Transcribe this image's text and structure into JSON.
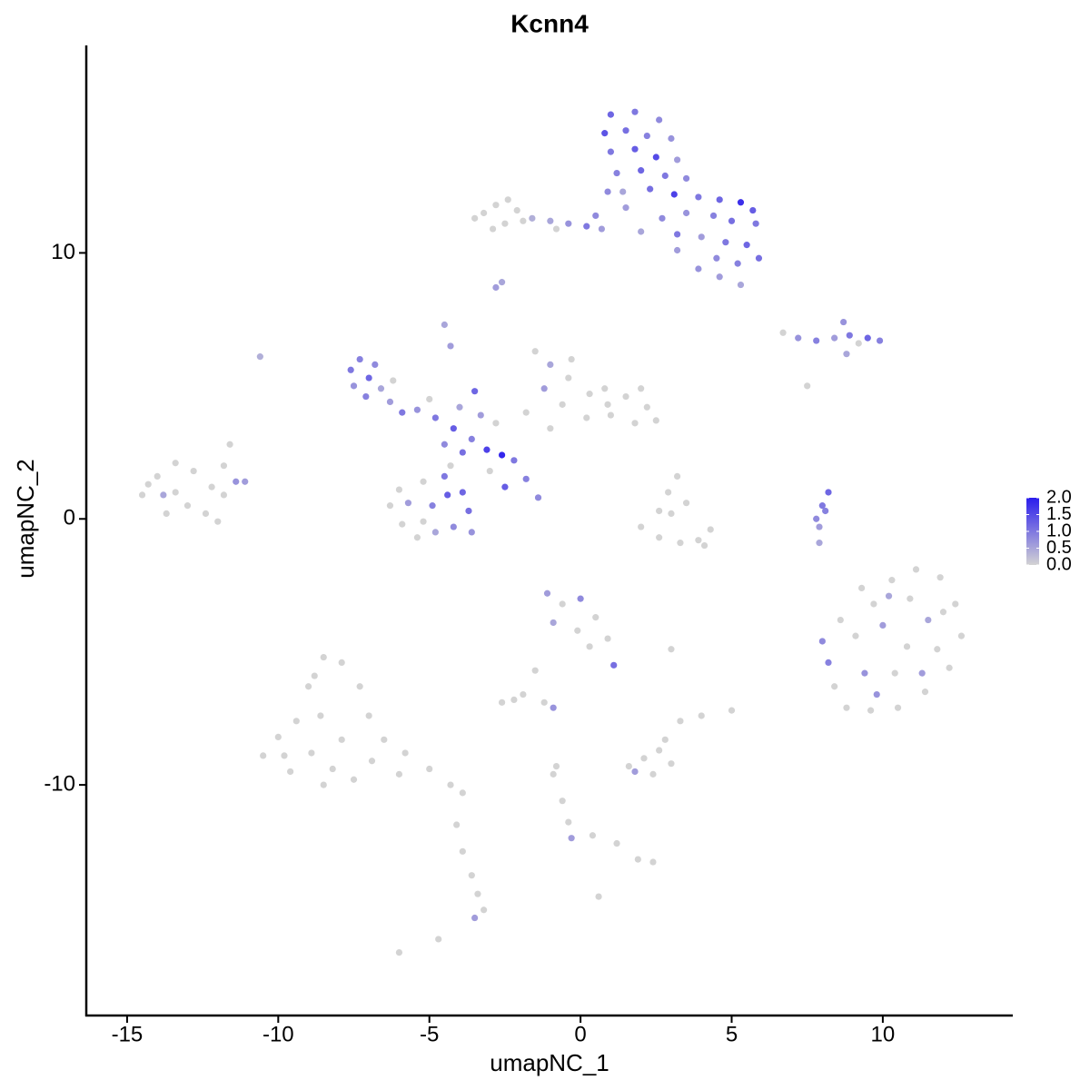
{
  "chart_data": {
    "type": "scatter",
    "title": "Kcnn4",
    "x_label": "umapNC_1",
    "y_label": "umapNC_2",
    "xlim": [
      -16.35,
      14.3
    ],
    "ylim": [
      -18.67,
      17.8
    ],
    "xticks": [
      -15,
      -10,
      -5,
      0,
      5,
      10
    ],
    "yticks": [
      -10,
      0,
      10
    ],
    "colors": {
      "low": "#d3d3d3",
      "high": "#2b1ded"
    },
    "colorbar": {
      "lim": [
        0,
        2
      ],
      "ticks": [
        {
          "value": 0,
          "label": "0.0"
        },
        {
          "value": 0.5,
          "label": "0.5"
        },
        {
          "value": 1,
          "label": "1.0"
        },
        {
          "value": 1.5,
          "label": "1.5"
        },
        {
          "value": 2,
          "label": "2.0"
        }
      ]
    },
    "x": [
      1.0,
      1.8,
      2.6,
      0.8,
      1.5,
      2.2,
      3.0,
      1.0,
      1.8,
      2.5,
      3.2,
      1.2,
      2.0,
      2.8,
      3.5,
      1.4,
      2.3,
      3.1,
      3.9,
      4.6,
      5.3,
      5.7,
      4.4,
      5.0,
      3.5,
      2.7,
      3.2,
      4.0,
      4.8,
      5.5,
      5.9,
      5.2,
      4.5,
      3.9,
      4.6,
      5.3,
      1.5,
      0.9,
      5.8,
      2.0,
      -3.2,
      -2.8,
      -2.5,
      -2.9,
      -3.5,
      -2.1,
      -1.6,
      -1.0,
      -0.4,
      0.2,
      0.7,
      -1.9,
      -2.4,
      -0.8,
      0.5,
      3.2,
      -2.8,
      -2.6,
      6.7,
      7.2,
      7.8,
      8.4,
      8.9,
      9.5,
      9.9,
      8.7,
      8.8,
      9.2,
      7.5,
      -7.6,
      -7.3,
      -7.0,
      -6.8,
      -7.5,
      -6.6,
      -7.1,
      -6.2,
      -6.3,
      -5.9,
      -5.4,
      -4.8,
      -4.2,
      -3.6,
      -3.1,
      -2.6,
      -3.9,
      -4.5,
      -3.3,
      -2.8,
      -4.0,
      -3.5,
      -4.3,
      -4.5,
      -2.2,
      -1.8,
      -1.4,
      -2.5,
      -4.3,
      -5.0,
      -3.0,
      -6.3,
      -5.9,
      -5.4,
      -4.8,
      -4.2,
      -3.7,
      -3.9,
      -4.5,
      -5.2,
      -5.7,
      -6.0,
      -4.9,
      -4.4,
      -3.6,
      -5.2,
      -1.5,
      -1.0,
      -0.4,
      0.3,
      0.8,
      1.5,
      2.2,
      2.5,
      1.8,
      1.0,
      0.2,
      -0.6,
      -1.2,
      -1.8,
      -1.0,
      -0.3,
      0.9,
      2.0,
      -14.5,
      -14.0,
      -13.4,
      -12.8,
      -12.2,
      -13.0,
      -13.7,
      -12.4,
      -11.8,
      -13.4,
      -11.4,
      -11.1,
      -11.8,
      -11.6,
      -12.0,
      -13.8,
      -10.6,
      -14.3,
      2.0,
      2.6,
      3.3,
      3.9,
      4.3,
      3.0,
      3.5,
      2.9,
      3.2,
      2.6,
      4.1,
      7.8,
      7.9,
      8.0,
      8.2,
      8.1,
      7.9,
      8.0,
      8.2,
      8.4,
      8.8,
      9.4,
      9.7,
      10.3,
      11.1,
      11.9,
      12.4,
      12.6,
      12.2,
      11.4,
      10.5,
      9.6,
      10.0,
      10.8,
      11.5,
      10.4,
      9.1,
      11.8,
      10.9,
      9.8,
      8.6,
      11.3,
      12.0,
      10.2,
      9.3,
      -1.1,
      -0.6,
      0.0,
      0.5,
      0.9,
      1.1,
      -0.1,
      -0.9,
      -1.5,
      -1.9,
      -2.6,
      -2.2,
      -0.9,
      -1.2,
      0.3,
      3.0,
      4.0,
      5.0,
      3.3,
      -10.5,
      -10.0,
      -9.4,
      -9.0,
      -8.5,
      -7.9,
      -7.3,
      -7.0,
      -6.5,
      -5.8,
      -5.0,
      -4.3,
      -3.9,
      -8.9,
      -8.2,
      -7.5,
      -9.6,
      -8.6,
      -7.9,
      -9.8,
      -8.5,
      -6.9,
      -6.0,
      -8.8,
      -4.1,
      -3.9,
      -3.6,
      -3.4,
      -3.2,
      -3.5,
      -4.7,
      -6.0,
      1.6,
      2.1,
      2.6,
      3.0,
      2.4,
      1.8,
      2.8,
      -0.9,
      -0.6,
      -0.4,
      -0.3,
      0.4,
      1.2,
      1.9,
      2.4,
      0.6,
      -0.8
    ],
    "y": [
      15.2,
      15.3,
      15.0,
      14.5,
      14.6,
      14.4,
      14.3,
      13.8,
      13.9,
      13.6,
      13.5,
      13.0,
      13.1,
      12.9,
      12.8,
      12.3,
      12.4,
      12.2,
      12.1,
      12.0,
      11.9,
      11.6,
      11.4,
      11.2,
      11.5,
      11.3,
      10.7,
      10.6,
      10.4,
      10.3,
      9.8,
      9.6,
      9.8,
      9.4,
      9.1,
      8.8,
      11.7,
      12.3,
      11.1,
      10.8,
      11.5,
      11.8,
      11.1,
      10.9,
      11.3,
      11.6,
      11.3,
      11.2,
      11.1,
      11.0,
      10.9,
      11.2,
      12.0,
      10.9,
      11.4,
      10.1,
      8.7,
      8.9,
      7.0,
      6.8,
      6.7,
      6.8,
      6.9,
      6.8,
      6.7,
      7.4,
      6.2,
      6.6,
      5.0,
      5.6,
      6.0,
      5.3,
      5.8,
      5.0,
      4.9,
      4.6,
      5.2,
      4.4,
      4.0,
      4.1,
      3.8,
      3.4,
      3.0,
      2.6,
      2.4,
      2.5,
      2.8,
      3.9,
      3.6,
      4.2,
      4.8,
      6.5,
      7.3,
      2.2,
      1.5,
      0.8,
      1.2,
      2.0,
      4.5,
      1.8,
      0.5,
      -0.2,
      -0.7,
      -0.5,
      -0.3,
      0.3,
      1.0,
      1.6,
      1.4,
      0.6,
      1.1,
      0.5,
      0.9,
      -0.5,
      -0.1,
      6.3,
      5.8,
      5.3,
      4.7,
      4.9,
      4.6,
      4.2,
      3.7,
      3.6,
      3.9,
      3.8,
      4.3,
      4.9,
      4.0,
      3.4,
      6.0,
      4.3,
      4.9,
      0.9,
      1.6,
      2.1,
      1.8,
      1.2,
      0.5,
      0.2,
      0.2,
      0.9,
      1.0,
      1.4,
      1.4,
      2.0,
      2.8,
      -0.1,
      0.9,
      6.1,
      1.3,
      -0.3,
      -0.7,
      -0.9,
      -0.8,
      -0.4,
      0.2,
      0.6,
      1.0,
      1.6,
      0.3,
      -1.0,
      0.0,
      -0.3,
      0.5,
      1.0,
      0.3,
      -0.9,
      -4.6,
      -5.4,
      -6.3,
      -7.1,
      -5.8,
      -3.2,
      -2.3,
      -1.9,
      -2.2,
      -3.2,
      -4.4,
      -5.6,
      -6.5,
      -7.1,
      -7.2,
      -4.0,
      -4.8,
      -3.8,
      -5.8,
      -4.4,
      -4.9,
      -3.0,
      -6.6,
      -3.8,
      -5.8,
      -3.5,
      -2.9,
      -2.6,
      -2.8,
      -3.2,
      -3.0,
      -3.7,
      -4.5,
      -5.5,
      -4.2,
      -3.9,
      -5.7,
      -6.6,
      -6.9,
      -6.8,
      -7.1,
      -6.9,
      -4.8,
      -4.9,
      -7.4,
      -7.2,
      -7.6,
      -8.9,
      -8.2,
      -7.6,
      -6.3,
      -5.2,
      -5.4,
      -6.3,
      -7.4,
      -8.3,
      -8.8,
      -9.4,
      -10.0,
      -10.3,
      -8.8,
      -9.4,
      -9.8,
      -9.5,
      -7.4,
      -8.3,
      -8.9,
      -10.0,
      -9.1,
      -9.6,
      -5.9,
      -11.5,
      -12.5,
      -13.4,
      -14.1,
      -14.7,
      -15.0,
      -15.8,
      -16.3,
      -9.3,
      -9.0,
      -8.7,
      -9.2,
      -9.6,
      -9.5,
      -8.3,
      -9.6,
      -10.6,
      -11.4,
      -12.0,
      -11.9,
      -12.2,
      -12.8,
      -12.9,
      -14.2,
      -9.3
    ],
    "values": [
      1.2,
      1.0,
      0.8,
      1.4,
      1.1,
      0.9,
      0.7,
      1.0,
      1.3,
      1.5,
      0.6,
      0.9,
      1.2,
      1.0,
      0.8,
      0.5,
      1.1,
      1.6,
      1.0,
      1.2,
      1.8,
      1.3,
      0.9,
      1.1,
      0.7,
      0.8,
      1.0,
      0.6,
      1.0,
      1.2,
      1.1,
      0.9,
      0.8,
      0.7,
      0.6,
      0.5,
      0.6,
      0.8,
      1.0,
      0.5,
      0,
      0,
      0,
      0,
      0,
      0,
      0.4,
      0.5,
      0.7,
      1.0,
      0.6,
      0,
      0,
      0,
      0.8,
      0.6,
      0.6,
      0.5,
      0,
      0.7,
      0.9,
      0.6,
      1.0,
      1.2,
      0.9,
      0.7,
      0.5,
      0,
      0,
      1.0,
      0.9,
      1.2,
      0.8,
      0.7,
      0.5,
      0.9,
      0,
      0.6,
      1.0,
      0.7,
      1.0,
      1.3,
      0.9,
      1.6,
      1.9,
      1.1,
      0.8,
      0.6,
      0,
      0.5,
      1.2,
      0.6,
      0.5,
      1.0,
      0.9,
      0.8,
      1.3,
      0,
      0,
      0,
      0,
      0,
      0,
      0.5,
      0.8,
      1.1,
      1.2,
      1.0,
      0,
      0.6,
      0,
      0.9,
      1.3,
      0.7,
      0,
      0,
      0.5,
      0,
      0,
      0,
      0,
      0,
      0,
      0,
      0,
      0,
      0,
      0.6,
      0,
      0,
      0,
      0,
      0,
      0,
      0,
      0,
      0,
      0,
      0,
      0,
      0,
      0,
      0,
      0.7,
      0.6,
      0,
      0,
      0,
      0.5,
      0.4,
      0,
      0,
      0,
      0,
      0,
      0,
      0,
      0,
      0,
      0,
      0,
      0,
      0.8,
      0.6,
      1.0,
      1.2,
      0.9,
      0.5,
      0.8,
      0.9,
      0,
      0,
      0.7,
      0,
      0,
      0,
      0,
      0,
      0,
      0,
      0,
      0,
      0,
      0.6,
      0,
      0.5,
      0,
      0,
      0,
      0,
      0.7,
      0,
      0.6,
      0,
      0.5,
      0,
      0.6,
      0,
      0.8,
      0,
      0,
      1.1,
      0,
      0.5,
      0,
      0,
      0,
      0,
      0.7,
      0,
      0,
      0,
      0,
      0,
      0,
      0,
      0,
      0,
      0,
      0,
      0,
      0,
      0,
      0,
      0,
      0,
      0,
      0,
      0,
      0,
      0,
      0,
      0,
      0,
      0,
      0,
      0,
      0,
      0,
      0,
      0,
      0,
      0,
      0,
      0.6,
      0,
      0,
      0,
      0,
      0,
      0,
      0,
      0.6,
      0,
      0,
      0,
      0,
      0.6,
      0,
      0,
      0,
      0,
      0,
      0
    ]
  }
}
